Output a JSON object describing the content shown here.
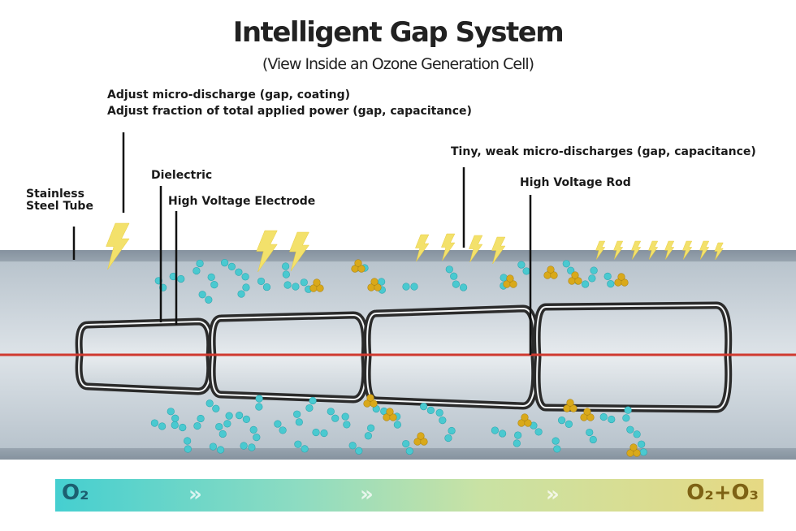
{
  "title": "Intelligent Gap System",
  "subtitle": "(View Inside an Ozone Generation Cell)",
  "labels": {
    "stainless_line1": "Stainless",
    "stainless_line2": "Steel Tube",
    "micro_adjust": "Adjust micro-discharge (gap, coating)",
    "power_adjust": "Adjust fraction of total applied power (gap, capacitance)",
    "dielectric": "Dielectric",
    "hv_electrode": "High Voltage Electrode",
    "tiny_discharges": "Tiny, weak micro-discharges (gap, capacitance)",
    "hv_rod": "High Voltage Rod"
  },
  "flow": {
    "start": "O₂",
    "end": "O₂+O₃",
    "arrows": "»"
  },
  "colors": {
    "tube": "#c2ccd4",
    "tube_edge": "#7f8d99",
    "rod": "#d03a30",
    "bolt": "#f3e16b",
    "oxygen": "#4ac9d0",
    "ozone": "#d9a91a",
    "electrode": "#2b2b2b"
  }
}
